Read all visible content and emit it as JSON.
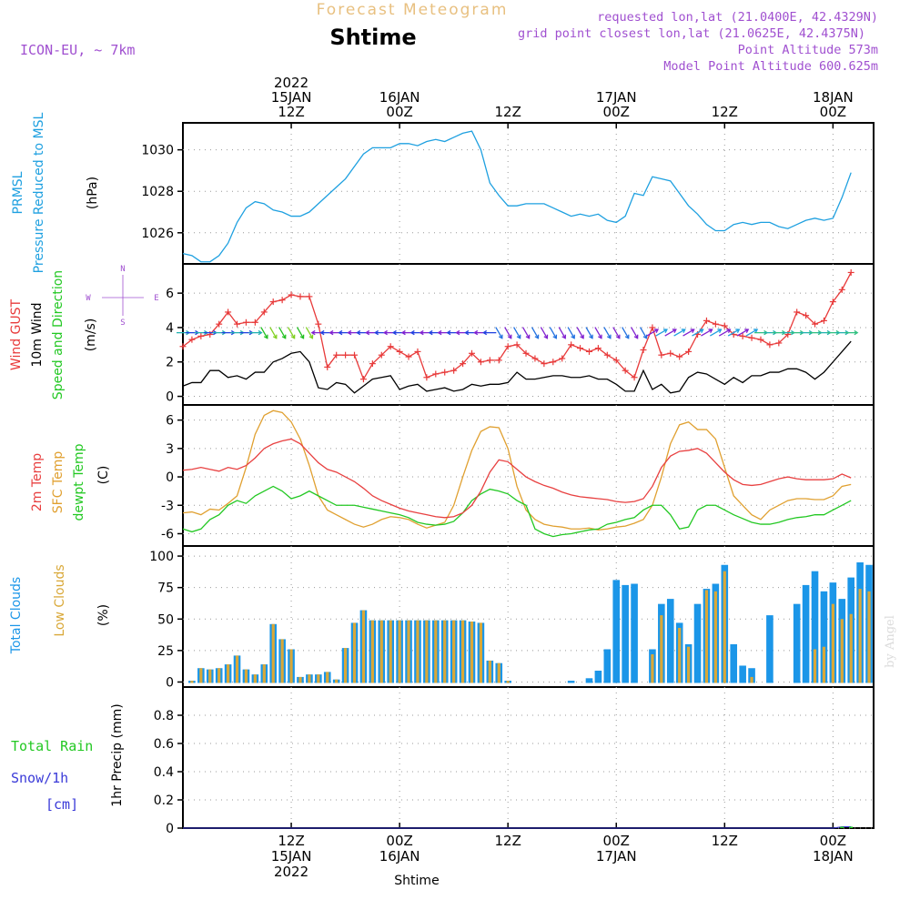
{
  "header": {
    "product_title": "Forecast Meteogram",
    "location_name": "Shtime",
    "model_label": "ICON-EU, ~ 7km",
    "requested_point": "requested lon,lat (21.0400E, 42.4329N)",
    "grid_point": "grid point closest lon,lat (21.0625E, 42.4375N)",
    "point_altitude": "Point Altitude 573m",
    "model_altitude": "Model Point Altitude 600.625m",
    "footer_location": "Shtime",
    "credit": "by Angel"
  },
  "time_axis": {
    "top_ticks": [
      {
        "h": 12,
        "lines": [
          "2022",
          "15JAN",
          "12Z"
        ]
      },
      {
        "h": 24,
        "lines": [
          "16JAN",
          "00Z"
        ]
      },
      {
        "h": 36,
        "lines": [
          "12Z"
        ]
      },
      {
        "h": 48,
        "lines": [
          "17JAN",
          "00Z"
        ]
      },
      {
        "h": 60,
        "lines": [
          "12Z"
        ]
      },
      {
        "h": 72,
        "lines": [
          "18JAN",
          "00Z"
        ]
      }
    ],
    "bottom_ticks": [
      {
        "h": 12,
        "lines": [
          "12Z",
          "15JAN",
          "2022"
        ]
      },
      {
        "h": 24,
        "lines": [
          "00Z",
          "16JAN"
        ]
      },
      {
        "h": 36,
        "lines": [
          "12Z"
        ]
      },
      {
        "h": 48,
        "lines": [
          "00Z",
          "17JAN"
        ]
      },
      {
        "h": 60,
        "lines": [
          "12Z"
        ]
      },
      {
        "h": 72,
        "lines": [
          "00Z",
          "18JAN"
        ]
      }
    ]
  },
  "panel_labels": {
    "pressure": {
      "name1": "PRMSL",
      "name2": "Pressure Reduced to MSL",
      "unit": "(hPa)"
    },
    "wind": {
      "gust": "Wind GUST",
      "wind10": "10m Wind",
      "speed_dir": "Speed and Direction",
      "unit": "(m/s)",
      "compass_n": "N",
      "compass_s": "S",
      "compass_w": "W",
      "compass_e": "E"
    },
    "temp": {
      "t2m": "2m Temp",
      "sfc": "SFC Temp",
      "dewpt": "dewpt Temp",
      "unit": "(C)"
    },
    "clouds": {
      "total": "Total Clouds",
      "low": "Low Clouds",
      "unit": "(%)"
    },
    "precip": {
      "rain": "Total  Rain",
      "snow": "Snow/1h",
      "snow_unit": "[cm]",
      "axis": "1hr Precip (mm)"
    }
  },
  "colors": {
    "pressure": "#1ea0e0",
    "gust": "#e83a3a",
    "wind": "#000000",
    "t2m": "#e84040",
    "sfc": "#e0a030",
    "dewpt": "#22c822",
    "total_cloud": "#1b96e8",
    "low_cloud": "#d9a838",
    "rain": "#22c822",
    "snow": "#3a3ad8",
    "meta": "#a050d0",
    "title_orange": "#e8c080"
  },
  "chart_data": [
    {
      "type": "line",
      "ylim": [
        1024.5,
        1031.3
      ],
      "yticks": [
        1026,
        1028,
        1030
      ],
      "series": [
        {
          "name": "PRMSL",
          "values": [
            1025.0,
            1024.9,
            1024.6,
            1024.6,
            1024.9,
            1025.5,
            1026.5,
            1027.2,
            1027.5,
            1027.4,
            1027.1,
            1027.0,
            1026.8,
            1026.8,
            1027.0,
            1027.4,
            1027.8,
            1028.2,
            1028.6,
            1029.2,
            1029.8,
            1030.1,
            1030.1,
            1030.1,
            1030.3,
            1030.3,
            1030.2,
            1030.4,
            1030.5,
            1030.4,
            1030.6,
            1030.8,
            1030.9,
            1030.0,
            1028.4,
            1027.8,
            1027.3,
            1027.3,
            1027.4,
            1027.4,
            1027.4,
            1027.2,
            1027.0,
            1026.8,
            1026.9,
            1026.8,
            1026.9,
            1026.6,
            1026.5,
            1026.8,
            1027.9,
            1027.8,
            1028.7,
            1028.6,
            1028.5,
            1027.9,
            1027.3,
            1026.9,
            1026.4,
            1026.1,
            1026.1,
            1026.4,
            1026.5,
            1026.4,
            1026.5,
            1026.5,
            1026.3,
            1026.2,
            1026.4,
            1026.6,
            1026.7,
            1026.6,
            1026.7,
            1027.7,
            1028.9
          ]
        }
      ]
    },
    {
      "type": "line",
      "ylim": [
        -0.5,
        7.7
      ],
      "yticks": [
        0,
        2,
        4,
        6
      ],
      "series": [
        {
          "name": "Wind GUST",
          "values": [
            2.9,
            3.3,
            3.5,
            3.6,
            4.2,
            4.9,
            4.2,
            4.3,
            4.3,
            4.9,
            5.5,
            5.6,
            5.9,
            5.8,
            5.8,
            4.2,
            1.7,
            2.4,
            2.4,
            2.4,
            1.0,
            1.9,
            2.4,
            2.9,
            2.6,
            2.3,
            2.6,
            1.1,
            1.3,
            1.4,
            1.5,
            1.9,
            2.5,
            2.0,
            2.1,
            2.1,
            2.9,
            3.0,
            2.5,
            2.2,
            1.9,
            2.0,
            2.2,
            3.0,
            2.8,
            2.6,
            2.8,
            2.4,
            2.1,
            1.5,
            1.1,
            2.7,
            4.0,
            2.4,
            2.5,
            2.3,
            2.6,
            3.6,
            4.4,
            4.2,
            4.1,
            3.6,
            3.5,
            3.4,
            3.3,
            3.0,
            3.1,
            3.6,
            4.9,
            4.7,
            4.2,
            4.4,
            5.5,
            6.2,
            7.2
          ]
        },
        {
          "name": "10m Wind",
          "values": [
            0.6,
            0.8,
            0.8,
            1.5,
            1.5,
            1.1,
            1.2,
            1.0,
            1.4,
            1.4,
            2.0,
            2.2,
            2.5,
            2.6,
            2.0,
            0.5,
            0.4,
            0.8,
            0.7,
            0.2,
            0.6,
            1.0,
            1.1,
            1.2,
            0.4,
            0.6,
            0.7,
            0.3,
            0.4,
            0.5,
            0.3,
            0.4,
            0.7,
            0.6,
            0.7,
            0.7,
            0.8,
            1.4,
            1.0,
            1.0,
            1.1,
            1.2,
            1.2,
            1.1,
            1.1,
            1.2,
            1.0,
            1.0,
            0.7,
            0.3,
            0.3,
            1.5,
            0.4,
            0.7,
            0.2,
            0.3,
            1.1,
            1.4,
            1.3,
            1.0,
            0.7,
            1.1,
            0.8,
            1.2,
            1.2,
            1.4,
            1.4,
            1.6,
            1.6,
            1.4,
            1.0,
            1.4,
            2.0,
            2.6,
            3.2
          ]
        }
      ]
    },
    {
      "type": "line",
      "ylim": [
        -7.3,
        7.6
      ],
      "yticks": [
        -6,
        -3,
        0,
        3,
        6
      ],
      "series": [
        {
          "name": "2m Temp",
          "values": [
            0.7,
            0.8,
            1.0,
            0.8,
            0.6,
            1.0,
            0.8,
            1.2,
            2.0,
            3.0,
            3.5,
            3.8,
            4.0,
            3.5,
            2.5,
            1.5,
            0.8,
            0.5,
            0.0,
            -0.5,
            -1.2,
            -2.0,
            -2.5,
            -2.9,
            -3.3,
            -3.6,
            -3.8,
            -4.0,
            -4.2,
            -4.3,
            -4.2,
            -3.8,
            -3.0,
            -1.5,
            0.5,
            1.8,
            1.6,
            0.8,
            0.0,
            -0.5,
            -0.9,
            -1.2,
            -1.6,
            -1.9,
            -2.1,
            -2.2,
            -2.3,
            -2.4,
            -2.6,
            -2.7,
            -2.6,
            -2.3,
            -1.0,
            1.0,
            2.2,
            2.7,
            2.8,
            3.0,
            2.5,
            1.5,
            0.5,
            -0.3,
            -0.8,
            -0.9,
            -0.8,
            -0.5,
            -0.2,
            0.0,
            -0.2,
            -0.3,
            -0.3,
            -0.3,
            -0.2,
            0.3,
            -0.1
          ]
        },
        {
          "name": "SFC Temp",
          "values": [
            -3.8,
            -3.7,
            -4.0,
            -3.4,
            -3.5,
            -2.8,
            -2.0,
            1.0,
            4.5,
            6.5,
            7.0,
            6.8,
            5.8,
            4.0,
            1.2,
            -2.0,
            -3.5,
            -4.0,
            -4.5,
            -5.0,
            -5.3,
            -5.0,
            -4.5,
            -4.2,
            -4.3,
            -4.5,
            -5.0,
            -5.4,
            -5.1,
            -4.8,
            -3.0,
            0.0,
            2.8,
            4.8,
            5.3,
            5.2,
            3.0,
            -1.0,
            -3.5,
            -4.5,
            -5.0,
            -5.2,
            -5.3,
            -5.5,
            -5.5,
            -5.4,
            -5.6,
            -5.5,
            -5.3,
            -5.2,
            -4.9,
            -4.5,
            -3.0,
            0.0,
            3.5,
            5.5,
            5.8,
            5.0,
            5.0,
            4.0,
            1.0,
            -2.0,
            -3.0,
            -4.0,
            -4.5,
            -3.5,
            -3.0,
            -2.5,
            -2.3,
            -2.3,
            -2.4,
            -2.4,
            -2.0,
            -1.0,
            -0.8
          ]
        },
        {
          "name": "dewpt Temp",
          "values": [
            -5.5,
            -5.8,
            -5.5,
            -4.5,
            -4.0,
            -3.0,
            -2.5,
            -2.8,
            -2.0,
            -1.5,
            -1.0,
            -1.5,
            -2.3,
            -2.0,
            -1.5,
            -2.0,
            -2.5,
            -3.0,
            -3.0,
            -3.0,
            -3.2,
            -3.4,
            -3.6,
            -3.8,
            -4.0,
            -4.3,
            -4.8,
            -5.0,
            -5.1,
            -5.0,
            -4.7,
            -3.8,
            -2.5,
            -1.8,
            -1.3,
            -1.5,
            -1.8,
            -2.5,
            -3.0,
            -5.5,
            -6.0,
            -6.3,
            -6.1,
            -6.0,
            -5.8,
            -5.6,
            -5.5,
            -5.0,
            -4.8,
            -4.5,
            -4.3,
            -3.5,
            -3.0,
            -3.0,
            -4.0,
            -5.5,
            -5.3,
            -3.5,
            -3.0,
            -3.0,
            -3.5,
            -4.0,
            -4.4,
            -4.8,
            -5.0,
            -5.0,
            -4.8,
            -4.5,
            -4.3,
            -4.2,
            -4.0,
            -4.0,
            -3.5,
            -3.0,
            -2.5
          ]
        }
      ]
    },
    {
      "type": "bar",
      "ylim": [
        -4,
        108
      ],
      "yticks": [
        0,
        25,
        50,
        75,
        100
      ],
      "series": [
        {
          "name": "Total Clouds",
          "values": [
            0,
            1,
            11,
            10,
            11,
            14,
            21,
            10,
            6,
            14,
            46,
            34,
            26,
            4,
            6,
            6,
            8,
            2,
            27,
            47,
            57,
            49,
            49,
            49,
            49,
            49,
            49,
            49,
            49,
            49,
            49,
            49,
            48,
            47,
            17,
            15,
            1,
            0,
            0,
            0,
            0,
            0,
            0,
            1,
            0,
            3,
            9,
            26,
            81,
            77,
            78,
            0,
            26,
            62,
            66,
            47,
            30,
            62,
            74,
            78,
            93,
            30,
            13,
            11,
            0,
            53,
            0,
            0,
            62,
            77,
            88,
            72,
            79,
            66,
            83,
            95,
            93,
            75
          ]
        },
        {
          "name": "Low Clouds",
          "values": [
            0,
            1,
            11,
            10,
            11,
            14,
            21,
            10,
            6,
            14,
            46,
            34,
            26,
            4,
            6,
            6,
            8,
            2,
            27,
            47,
            57,
            49,
            49,
            49,
            49,
            49,
            49,
            49,
            49,
            49,
            49,
            49,
            48,
            47,
            17,
            15,
            1,
            0,
            0,
            0,
            0,
            0,
            0,
            0,
            0,
            0,
            0,
            0,
            0,
            0,
            0,
            0,
            22,
            53,
            0,
            43,
            28,
            0,
            73,
            72,
            88,
            0,
            0,
            4,
            0,
            0,
            0,
            0,
            0,
            0,
            26,
            28,
            62,
            50,
            54,
            74,
            72,
            54
          ]
        }
      ]
    },
    {
      "type": "line",
      "ylim": [
        0,
        1.0
      ],
      "yticks": [
        0,
        0.2,
        0.4,
        0.6,
        0.8
      ],
      "series": [
        {
          "name": "Total Rain",
          "values": [
            0,
            0,
            0,
            0,
            0,
            0,
            0,
            0,
            0,
            0,
            0,
            0,
            0,
            0,
            0,
            0,
            0,
            0,
            0,
            0,
            0,
            0,
            0,
            0,
            0,
            0,
            0,
            0,
            0,
            0,
            0,
            0,
            0,
            0,
            0,
            0,
            0,
            0,
            0,
            0,
            0,
            0,
            0,
            0,
            0,
            0,
            0,
            0,
            0,
            0,
            0,
            0,
            0,
            0,
            0,
            0,
            0,
            0,
            0,
            0,
            0,
            0,
            0,
            0,
            0,
            0,
            0,
            0,
            0,
            0,
            0,
            0,
            0,
            0.01,
            0.01
          ]
        }
      ]
    }
  ]
}
